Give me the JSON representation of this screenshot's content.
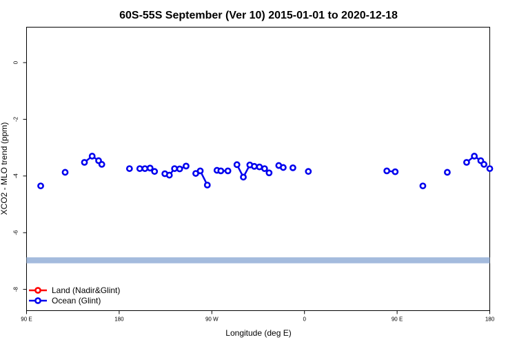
{
  "chart_data": {
    "type": "scatter",
    "title": "60S-55S September (Ver 10)   2015-01-01 to 2020-12-18",
    "xlabel": "Longitude (deg E)",
    "ylabel": "XCO2 - MLO trend (ppm)",
    "xlim": [
      90,
      450
    ],
    "ylim": [
      -8.75,
      1.25
    ],
    "x_ticks": [
      {
        "value": 90,
        "label": "90 E"
      },
      {
        "value": 180,
        "label": "180"
      },
      {
        "value": 270,
        "label": "90 W"
      },
      {
        "value": 360,
        "label": "0"
      },
      {
        "value": 450,
        "label": "90 E"
      },
      {
        "value": 540,
        "label": "180"
      }
    ],
    "y_ticks": [
      {
        "value": 0,
        "label": "0"
      },
      {
        "value": -2,
        "label": "-2"
      },
      {
        "value": -4,
        "label": "-4"
      },
      {
        "value": -6,
        "label": "-6"
      },
      {
        "value": -8,
        "label": "-8"
      }
    ],
    "grid": false,
    "legend_position": "bottom-left",
    "reference_band": {
      "y_min": -7.08,
      "y_max": -6.87,
      "color": "#a4bbdd"
    },
    "series": [
      {
        "name": "Land (Nadir&Glint)",
        "color": "#ff0000",
        "segments": []
      },
      {
        "name": "Ocean (Glint)",
        "color": "#0000ee",
        "segments": [
          [
            {
              "x": 101,
              "y": -4.35
            }
          ],
          [
            {
              "x": 120,
              "y": -3.87
            }
          ],
          [
            {
              "x": 135,
              "y": -3.52
            },
            {
              "x": 141,
              "y": -3.3
            },
            {
              "x": 146,
              "y": -3.46
            },
            {
              "x": 148.5,
              "y": -3.59
            }
          ],
          [
            {
              "x": 170,
              "y": -3.74
            }
          ],
          [
            {
              "x": 178,
              "y": -3.74
            },
            {
              "x": 182,
              "y": -3.74
            },
            {
              "x": 186,
              "y": -3.72
            },
            {
              "x": 189.5,
              "y": -3.84
            }
          ],
          [
            {
              "x": 197.5,
              "y": -3.92
            },
            {
              "x": 201,
              "y": -3.97
            },
            {
              "x": 205,
              "y": -3.74
            },
            {
              "x": 209,
              "y": -3.75
            },
            {
              "x": 214,
              "y": -3.65
            }
          ],
          [
            {
              "x": 221.5,
              "y": -3.91
            },
            {
              "x": 225,
              "y": -3.82
            },
            {
              "x": 230.5,
              "y": -4.32
            }
          ],
          [
            {
              "x": 238,
              "y": -3.8
            },
            {
              "x": 241,
              "y": -3.82
            },
            {
              "x": 246.5,
              "y": -3.82
            }
          ],
          [
            {
              "x": 253.5,
              "y": -3.6
            },
            {
              "x": 258.5,
              "y": -4.04
            },
            {
              "x": 263.5,
              "y": -3.61
            },
            {
              "x": 267,
              "y": -3.66
            },
            {
              "x": 271,
              "y": -3.68
            },
            {
              "x": 275,
              "y": -3.74
            },
            {
              "x": 278.5,
              "y": -3.89
            }
          ],
          [
            {
              "x": 286,
              "y": -3.63
            },
            {
              "x": 289.5,
              "y": -3.7
            }
          ],
          [
            {
              "x": 297,
              "y": -3.71
            }
          ],
          [
            {
              "x": 309,
              "y": -3.84
            }
          ],
          [
            {
              "x": 370,
              "y": -3.82
            },
            {
              "x": 376.5,
              "y": -3.85
            }
          ],
          [
            {
              "x": 398,
              "y": -4.35
            }
          ],
          [
            {
              "x": 417,
              "y": -3.87
            }
          ],
          [
            {
              "x": 432,
              "y": -3.52
            },
            {
              "x": 438,
              "y": -3.3
            },
            {
              "x": 443,
              "y": -3.46
            },
            {
              "x": 445.5,
              "y": -3.59
            }
          ],
          [
            {
              "x": 450,
              "y": -3.74
            }
          ]
        ]
      }
    ]
  }
}
